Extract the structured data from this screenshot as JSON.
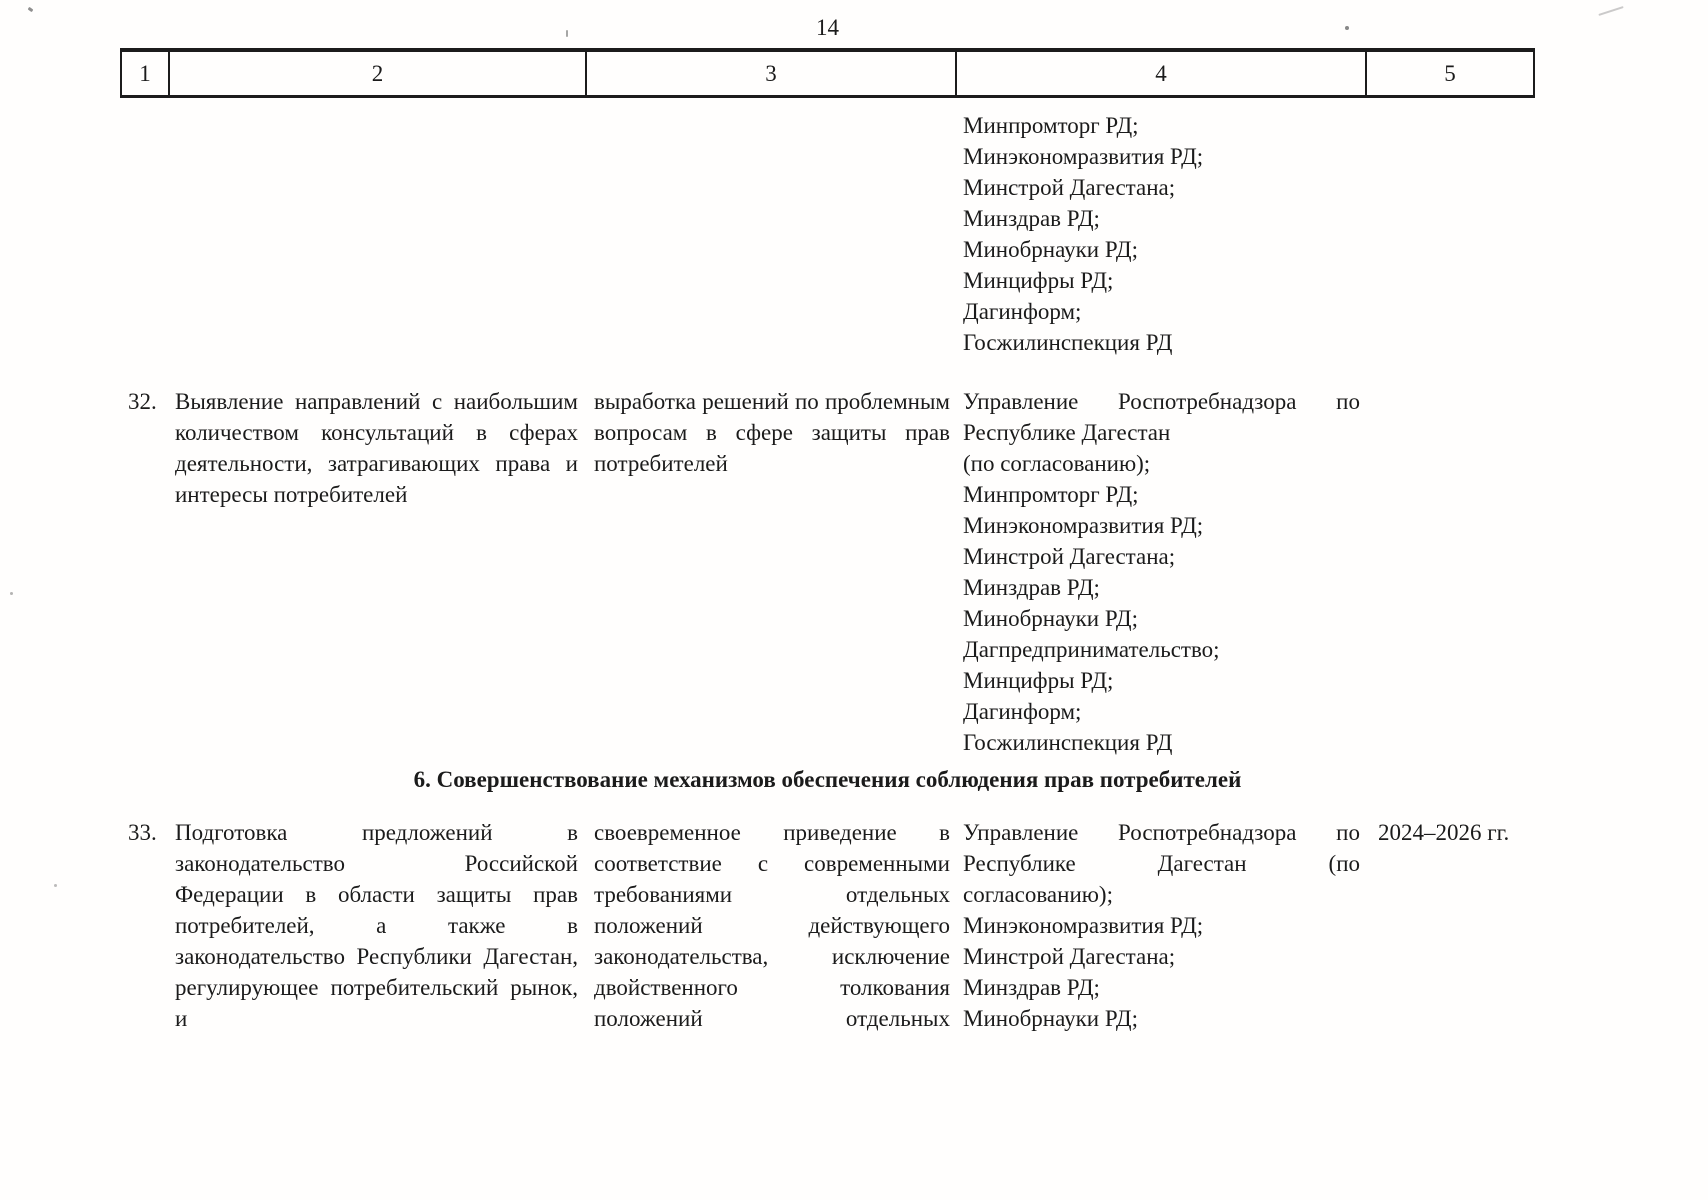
{
  "page": {
    "number": "14"
  },
  "table": {
    "headers": [
      "1",
      "2",
      "3",
      "4",
      "5"
    ],
    "carryover": {
      "executors": "Минпромторг РД;\nМинэкономразвития РД;\nМинстрой Дагестана;\nМинздрав РД;\nМинобрнауки РД;\nМинцифры РД;\nДагинформ;\nГосжилинспекция РД"
    },
    "rows": [
      {
        "num": "32.",
        "activity": "Выявление направлений с наибольшим количеством консультаций в сферах деятельности, затрагивающих права и интересы потребителей",
        "result": "выработка решений по проблемным вопросам в сфере защиты прав потребителей",
        "executors": "Управление Роспотребнадзора по Республике Дагестан\n(по согласованию);\nМинпромторг РД;\nМинэкономразвития РД;\nМинстрой Дагестана;\nМинздрав РД;\nМинобрнауки РД;\nДагпредпринимательство;\nМинцифры РД;\nДагинформ;\nГосжилинспекция РД",
        "period": ""
      },
      {
        "num": "33.",
        "activity": "Подготовка предложений в законодательство Российской Федерации в области защиты прав потребителей, а также в законодательство Республики Дагестан, регулирующее потребительский рынок, и",
        "result": "своевременное приведение в соответствие с современными требованиями отдельных положений действующего законодательства, исключение двойственного толкования положений отдельных",
        "executors": "Управление Роспотребнадзора по Республике Дагестан (по согласованию);\nМинэкономразвития РД;\nМинстрой Дагестана;\nМинздрав РД;\nМинобрнауки РД;",
        "period": "2024–2026 гг."
      }
    ]
  },
  "section_heading": "6. Совершенствование механизмов обеспечения соблюдения прав потребителей"
}
